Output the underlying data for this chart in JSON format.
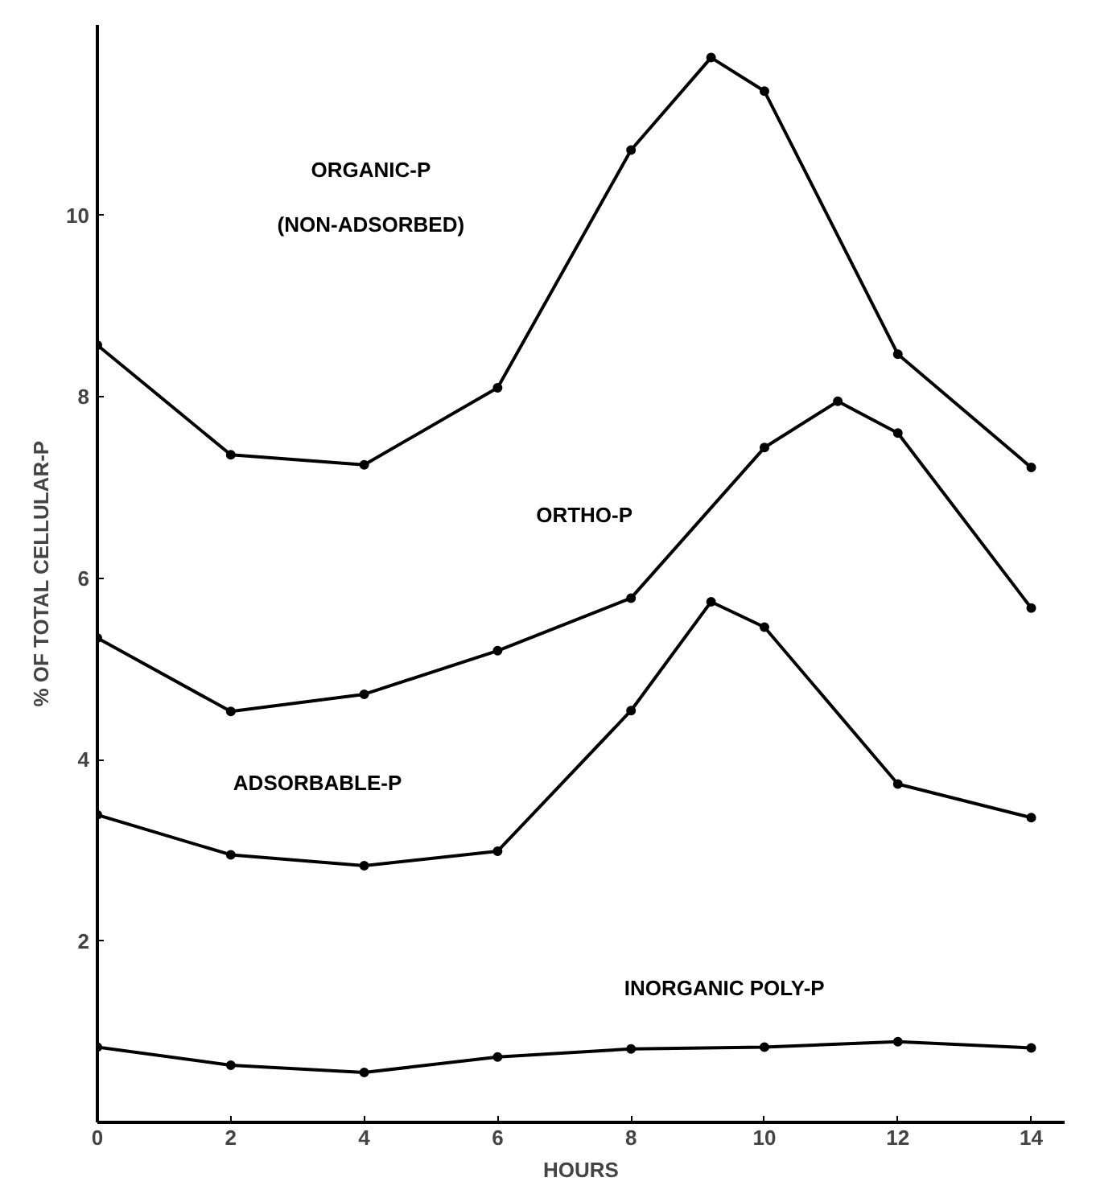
{
  "chart_data": {
    "type": "line",
    "xlabel": "HOURS",
    "ylabel": "% OF TOTAL CELLULAR-P",
    "xlim": [
      0,
      14.5
    ],
    "ylim": [
      0,
      12.1
    ],
    "xticks": [
      0,
      2,
      4,
      6,
      8,
      10,
      12,
      14
    ],
    "yticks": [
      2,
      4,
      6,
      8,
      10
    ],
    "grid": false,
    "marker": "circle",
    "line_style": "solid",
    "series": [
      {
        "name": "ORGANIC-P\n(NON-ADSORBED)",
        "color": "#000000",
        "x": [
          0,
          2,
          4,
          6,
          8,
          9.2,
          10,
          12,
          14
        ],
        "values": [
          8.57,
          7.36,
          7.25,
          8.1,
          10.72,
          11.74,
          11.37,
          8.47,
          7.22
        ]
      },
      {
        "name": "ORTHO-P",
        "color": "#000000",
        "x": [
          0,
          2,
          4,
          6,
          8,
          10,
          11.1,
          12,
          14
        ],
        "values": [
          5.34,
          4.53,
          4.72,
          5.2,
          5.78,
          7.44,
          7.95,
          7.6,
          5.67
        ]
      },
      {
        "name": "ADSORBABLE-P",
        "color": "#000000",
        "x": [
          0,
          2,
          4,
          6,
          8,
          9.2,
          10,
          12,
          14
        ],
        "values": [
          3.39,
          2.95,
          2.83,
          2.99,
          4.54,
          5.74,
          5.46,
          3.73,
          3.36
        ]
      },
      {
        "name": "INORGANIC POLY-P",
        "color": "#000000",
        "x": [
          0,
          2,
          4,
          6,
          8,
          10,
          12,
          14
        ],
        "values": [
          0.83,
          0.63,
          0.55,
          0.72,
          0.81,
          0.83,
          0.89,
          0.82
        ]
      }
    ]
  }
}
